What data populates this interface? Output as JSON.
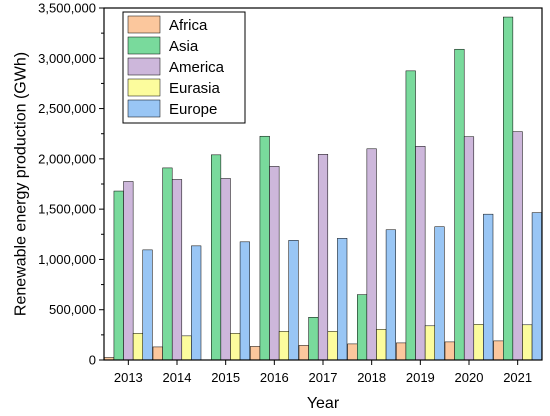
{
  "chart_data": {
    "type": "bar",
    "xlabel": "Year",
    "ylabel": "Renewable energy production (GWh)",
    "categories": [
      "2013",
      "2014",
      "2015",
      "2016",
      "2017",
      "2018",
      "2019",
      "2020",
      "2021"
    ],
    "ylim": [
      0,
      3500000
    ],
    "yticks": [
      0,
      500000,
      1000000,
      1500000,
      2000000,
      2500000,
      3000000,
      3500000
    ],
    "ytick_labels": [
      "0",
      "500,000",
      "1,000,000",
      "1,500,000",
      "2,000,000",
      "2,500,000",
      "3,000,000",
      "3,500,000"
    ],
    "grid": false,
    "legend_position": "top-left",
    "series": [
      {
        "name": "Africa",
        "color": "#fbc79d",
        "values": [
          25000,
          130000,
          0,
          135000,
          145000,
          160000,
          170000,
          180000,
          190000
        ]
      },
      {
        "name": "Asia",
        "color": "#79da9c",
        "values": [
          1680000,
          1910000,
          2040000,
          2225000,
          425000,
          650000,
          2875000,
          3090000,
          3410000
        ]
      },
      {
        "name": "America",
        "color": "#cdb7db",
        "values": [
          1775000,
          1795000,
          1805000,
          1925000,
          2045000,
          2100000,
          2125000,
          2220000,
          2270000
        ]
      },
      {
        "name": "Eurasia",
        "color": "#fcfc9d",
        "values": [
          265000,
          240000,
          265000,
          285000,
          285000,
          305000,
          340000,
          355000,
          350000
        ]
      },
      {
        "name": "Europe",
        "color": "#99c6f5",
        "values": [
          1095000,
          1135000,
          1175000,
          1190000,
          1210000,
          1295000,
          1325000,
          1450000,
          1465000
        ]
      }
    ]
  }
}
